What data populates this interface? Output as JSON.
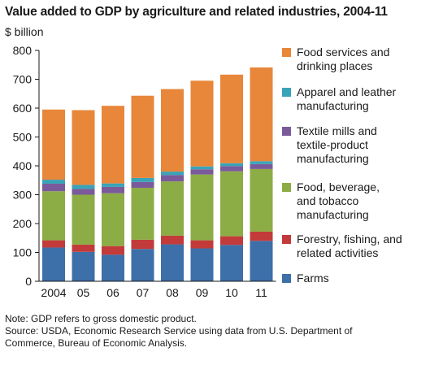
{
  "title": "Value added to GDP by agriculture and related industries, 2004-11",
  "unit_label": "$ billion",
  "chart_data": {
    "type": "bar",
    "stacked": true,
    "categories": [
      "2004",
      "05",
      "06",
      "07",
      "08",
      "09",
      "10",
      "11"
    ],
    "ylim": [
      0,
      800
    ],
    "yticks": [
      0,
      100,
      200,
      300,
      400,
      500,
      600,
      700,
      800
    ],
    "grid": false,
    "legend_position": "right",
    "series": [
      {
        "name": "Farms",
        "color": "#3d6fa8",
        "values": [
          117,
          102,
          92,
          112,
          128,
          114,
          126,
          140
        ]
      },
      {
        "name": "Forestry, fishing, and related activities",
        "color": "#c23b3a",
        "values": [
          25,
          25,
          30,
          32,
          30,
          28,
          30,
          32
        ]
      },
      {
        "name": "Food, beverage, and tobacco manufacturing",
        "color": "#8cac45",
        "values": [
          170,
          173,
          183,
          180,
          188,
          228,
          225,
          217
        ]
      },
      {
        "name": "Textile mills and textile-product manufacturing",
        "color": "#7a5a9a",
        "values": [
          26,
          20,
          22,
          20,
          22,
          18,
          18,
          17
        ]
      },
      {
        "name": "Apparel and leather manufacturing",
        "color": "#3aa3b8",
        "values": [
          14,
          14,
          12,
          14,
          12,
          10,
          10,
          10
        ]
      },
      {
        "name": "Food services and drinking places",
        "color": "#e8863a",
        "values": [
          243,
          259,
          269,
          285,
          286,
          297,
          307,
          325
        ]
      }
    ]
  },
  "legend": [
    {
      "label": "Food services and\ndrinking places",
      "color": "#e8863a"
    },
    {
      "label": "Apparel and leather\nmanufacturing",
      "color": "#3aa3b8"
    },
    {
      "label": "Textile mills and\ntextile-product\nmanufacturing",
      "color": "#7a5a9a"
    },
    {
      "label": "Food, beverage,\nand tobacco\nmanufacturing",
      "color": "#8cac45"
    },
    {
      "label": "Forestry, fishing, and\nrelated activities",
      "color": "#c23b3a"
    },
    {
      "label": "Farms",
      "color": "#3d6fa8"
    }
  ],
  "notes": {
    "line1": "Note: GDP refers to gross domestic product.",
    "line2": "Source: USDA, Economic Research Service using data from U.S. Department of",
    "line3": "Commerce, Bureau of Economic Analysis."
  }
}
